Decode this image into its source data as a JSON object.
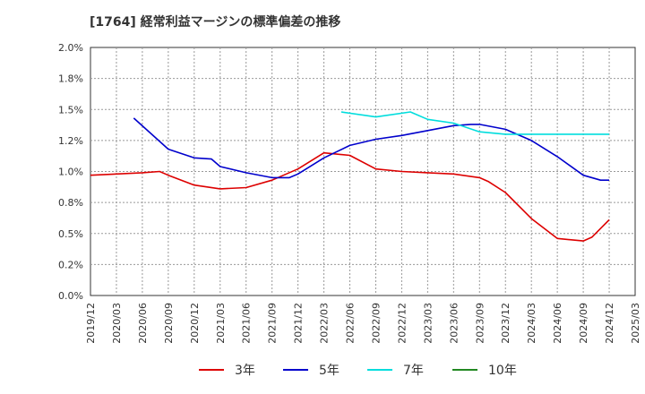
{
  "title": "[1764]  経常利益マージンの標準偏差の推移",
  "chart_data": {
    "type": "line",
    "ylim": [
      0,
      2.0
    ],
    "y_ticks": [
      "0.0%",
      "0.2%",
      "0.5%",
      "0.8%",
      "1.0%",
      "1.2%",
      "1.5%",
      "1.8%",
      "2.0%"
    ],
    "y_tick_values": [
      0,
      0.25,
      0.5,
      0.75,
      1.0,
      1.25,
      1.5,
      1.75,
      2.0
    ],
    "x_ticks": [
      "2019/12",
      "2020/03",
      "2020/06",
      "2020/09",
      "2020/12",
      "2021/03",
      "2021/06",
      "2021/09",
      "2021/12",
      "2022/03",
      "2022/06",
      "2022/09",
      "2022/12",
      "2023/03",
      "2023/06",
      "2023/09",
      "2023/12",
      "2024/03",
      "2024/06",
      "2024/09",
      "2024/12",
      "2025/03"
    ],
    "grid": true,
    "legend_position": "bottom",
    "series": [
      {
        "name": "3年",
        "color": "#dd0000",
        "points": [
          [
            "2019/12",
            0.97
          ],
          [
            "2020/03",
            0.98
          ],
          [
            "2020/06",
            0.99
          ],
          [
            "2020/08",
            1.0
          ],
          [
            "2020/09",
            0.97
          ],
          [
            "2020/12",
            0.89
          ],
          [
            "2021/03",
            0.86
          ],
          [
            "2021/06",
            0.87
          ],
          [
            "2021/09",
            0.93
          ],
          [
            "2021/12",
            1.02
          ],
          [
            "2022/03",
            1.15
          ],
          [
            "2022/06",
            1.13
          ],
          [
            "2022/09",
            1.02
          ],
          [
            "2022/12",
            1.0
          ],
          [
            "2023/03",
            0.99
          ],
          [
            "2023/06",
            0.98
          ],
          [
            "2023/09",
            0.95
          ],
          [
            "2023/10",
            0.92
          ],
          [
            "2023/12",
            0.83
          ],
          [
            "2024/03",
            0.62
          ],
          [
            "2024/06",
            0.46
          ],
          [
            "2024/09",
            0.44
          ],
          [
            "2024/10",
            0.47
          ],
          [
            "2024/12",
            0.61
          ]
        ]
      },
      {
        "name": "5年",
        "color": "#0000cc",
        "points": [
          [
            "2020/05",
            1.43
          ],
          [
            "2020/09",
            1.18
          ],
          [
            "2020/12",
            1.11
          ],
          [
            "2021/02",
            1.1
          ],
          [
            "2021/03",
            1.04
          ],
          [
            "2021/06",
            0.99
          ],
          [
            "2021/09",
            0.95
          ],
          [
            "2021/11",
            0.95
          ],
          [
            "2021/12",
            0.98
          ],
          [
            "2022/03",
            1.11
          ],
          [
            "2022/06",
            1.21
          ],
          [
            "2022/09",
            1.26
          ],
          [
            "2022/12",
            1.29
          ],
          [
            "2023/03",
            1.33
          ],
          [
            "2023/06",
            1.37
          ],
          [
            "2023/08",
            1.38
          ],
          [
            "2023/09",
            1.38
          ],
          [
            "2023/12",
            1.34
          ],
          [
            "2024/03",
            1.25
          ],
          [
            "2024/06",
            1.12
          ],
          [
            "2024/09",
            0.97
          ],
          [
            "2024/11",
            0.93
          ],
          [
            "2024/12",
            0.93
          ]
        ]
      },
      {
        "name": "7年",
        "color": "#00dddd",
        "points": [
          [
            "2022/05",
            1.48
          ],
          [
            "2022/09",
            1.44
          ],
          [
            "2023/01",
            1.48
          ],
          [
            "2023/03",
            1.42
          ],
          [
            "2023/06",
            1.39
          ],
          [
            "2023/09",
            1.32
          ],
          [
            "2023/12",
            1.3
          ],
          [
            "2024/03",
            1.3
          ],
          [
            "2024/12",
            1.3
          ]
        ]
      },
      {
        "name": "10年",
        "color": "#228822",
        "points": []
      }
    ]
  }
}
